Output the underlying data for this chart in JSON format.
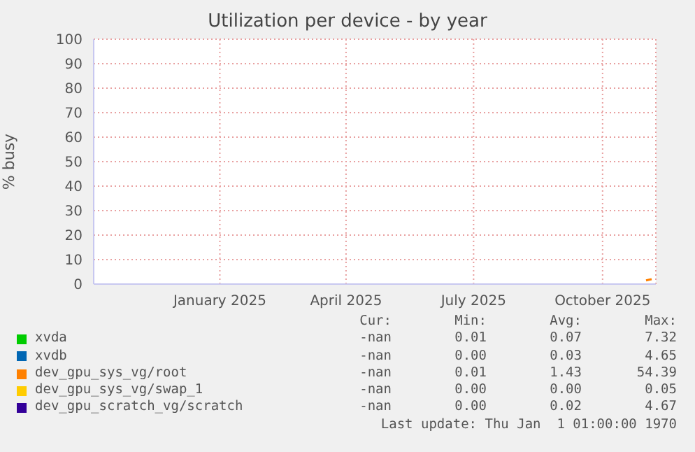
{
  "chart_data": {
    "type": "line",
    "title": "Utilization per device - by year",
    "ylabel": "% busy",
    "xlim": [
      "2024-10-03",
      "2025-11-08"
    ],
    "xticks": [
      {
        "value": "2025-01-01",
        "label": "January 2025"
      },
      {
        "value": "2025-04-01",
        "label": "April 2025"
      },
      {
        "value": "2025-07-01",
        "label": "July 2025"
      },
      {
        "value": "2025-10-01",
        "label": "October 2025"
      }
    ],
    "ylim": [
      0,
      100
    ],
    "yticks": [
      0,
      10,
      20,
      30,
      40,
      50,
      60,
      70,
      80,
      90,
      100
    ],
    "grid": true,
    "legend": "bottom",
    "series": [
      {
        "name": "xvda",
        "color": "#00cc00"
      },
      {
        "name": "xvdb",
        "color": "#0066b3"
      },
      {
        "name": "dev_gpu_sys_vg/root",
        "color": "#ff8000",
        "x": [
          "2025-11-01",
          "2025-11-05"
        ],
        "values": [
          1.5,
          2
        ]
      },
      {
        "name": "dev_gpu_sys_vg/swap_1",
        "color": "#ffcc00"
      },
      {
        "name": "dev_gpu_scratch_vg/scratch",
        "color": "#330099"
      }
    ],
    "annotations": [
      "Cur:",
      "Min:",
      "Avg:",
      "Max:",
      "-nan",
      "0.01",
      "0.07",
      "7.32",
      "-nan",
      "0.00",
      "0.03",
      "4.65",
      "-nan",
      "0.01",
      "1.43",
      "54.39",
      "-nan",
      "0.00",
      "0.00",
      "0.05",
      "-nan",
      "0.00",
      "0.02",
      "4.67",
      "Last update: Thu Jan  1 01:00:00 1970"
    ]
  }
}
